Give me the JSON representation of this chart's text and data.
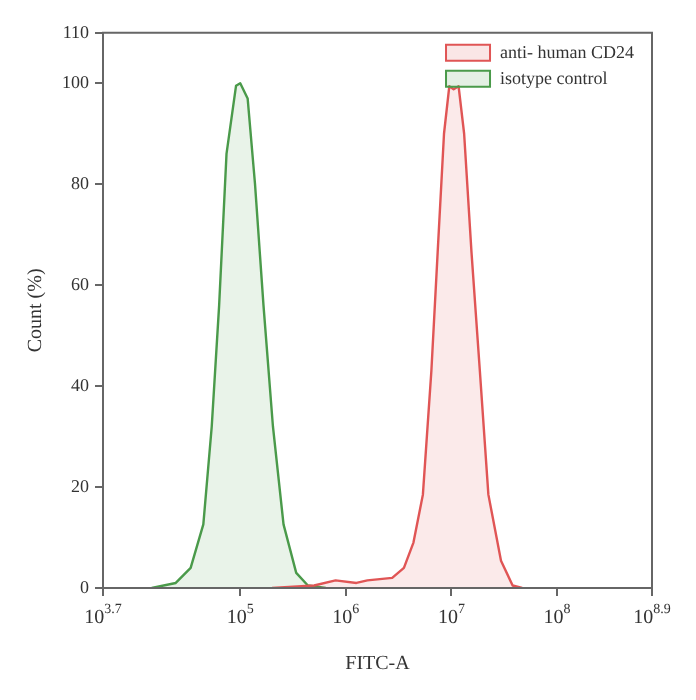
{
  "chart_data": {
    "type": "area",
    "xlabel": "FITC-A",
    "ylabel": "Count (%)",
    "log": "x",
    "xlim": [
      5012,
      794300000
    ],
    "xticks": [
      {
        "value": 5012,
        "label": "10$^{3.7}$"
      },
      {
        "value": 100000,
        "label": "10$^{5}$"
      },
      {
        "value": 1000000,
        "label": "10$^{6}$"
      },
      {
        "value": 10000000,
        "label": "10$^{7}$"
      },
      {
        "value": 100000000,
        "label": "10$^{8}$"
      },
      {
        "value": 794300000,
        "label": "10$^{8.9}$"
      }
    ],
    "ylim": [
      0,
      110
    ],
    "yticks": [
      0,
      20,
      40,
      60,
      80,
      100,
      110
    ],
    "legend": "top right",
    "grid": false,
    "marker": "none",
    "series": [
      {
        "name": "anti- human CD24",
        "color": "#e05555",
        "x": [
          200000,
          500000,
          800000,
          1260000,
          1600000,
          2750000,
          3550000,
          4370000,
          5370000,
          6460000,
          7410000,
          8510000,
          9550000,
          10500000,
          11700000,
          13200000,
          15500000,
          18600000,
          22400000,
          29500000,
          38000000,
          46800000
        ],
        "values": [
          0,
          0.5,
          1.5,
          1,
          1.5,
          2,
          4,
          9,
          18.5,
          43,
          66.5,
          90,
          99.4,
          98.8,
          99.4,
          90,
          66.5,
          43,
          18.5,
          5.4,
          0.5,
          0
        ]
      },
      {
        "name": "isotype control",
        "color": "#4a9a4a",
        "x": [
          14500,
          24500,
          33900,
          44700,
          53700,
          63100,
          74100,
          91200,
          100000,
          117500,
          138000,
          166000,
          204000,
          257000,
          339000,
          437000,
          646000
        ],
        "values": [
          0,
          1,
          4,
          12.6,
          32,
          56,
          86,
          99.5,
          100,
          97,
          80,
          56,
          32,
          12.6,
          3,
          0.5,
          0
        ]
      }
    ]
  }
}
